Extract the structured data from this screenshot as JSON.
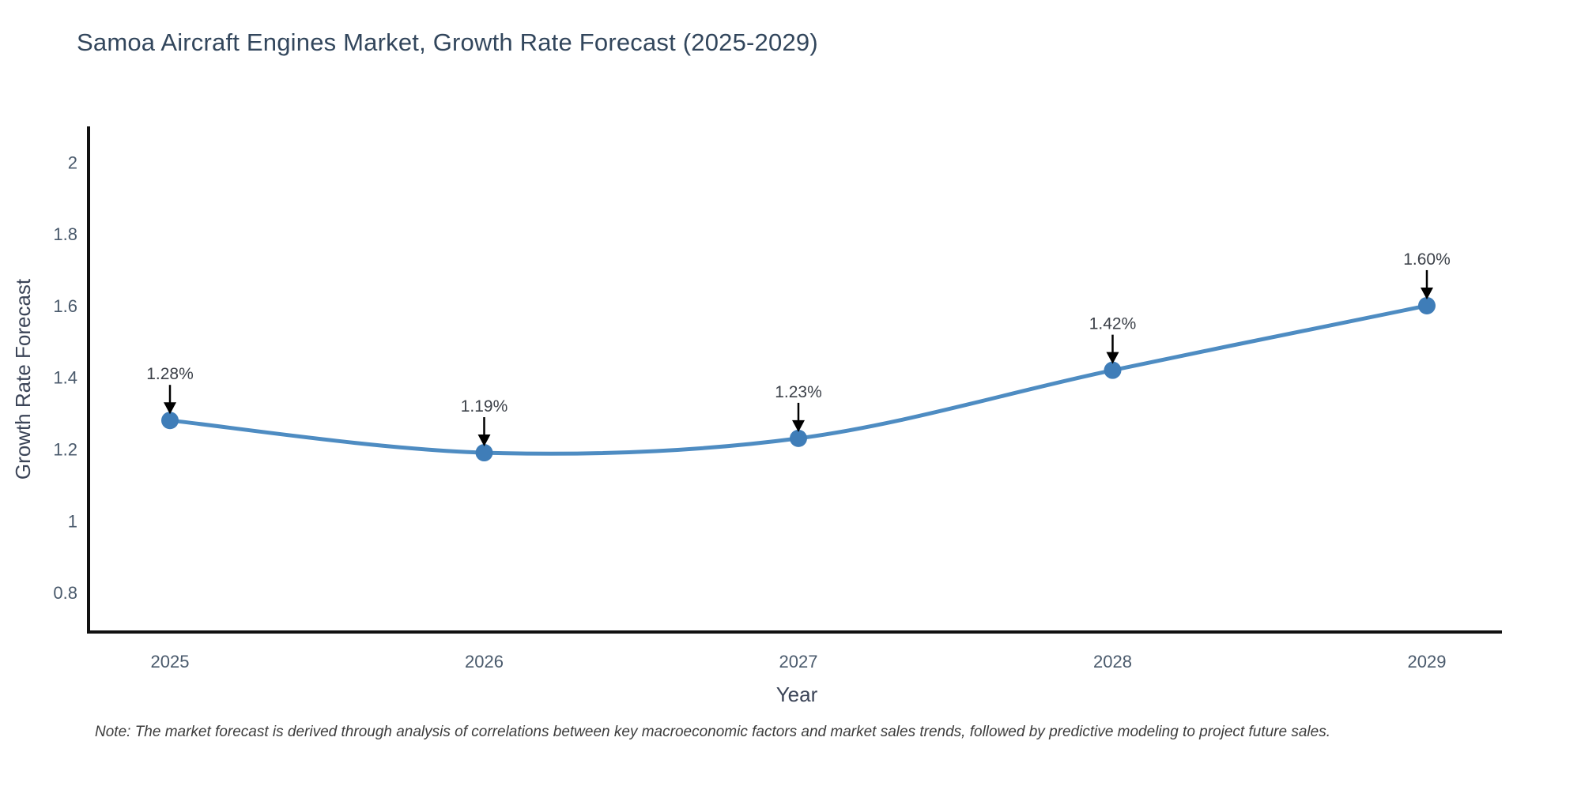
{
  "title": "Samoa Aircraft Engines Market, Growth Rate Forecast (2025-2029)",
  "note": "Note: The market forecast is derived through analysis of correlations between key macroeconomic factors and market sales trends, followed by predictive modeling to project future sales.",
  "chart_data": {
    "type": "line",
    "title": "Samoa Aircraft Engines Market, Growth Rate Forecast (2025-2029)",
    "xlabel": "Year",
    "ylabel": "Growth Rate Forecast",
    "categories": [
      "2025",
      "2026",
      "2027",
      "2028",
      "2029"
    ],
    "series": [
      {
        "name": "Growth Rate Forecast",
        "values": [
          1.28,
          1.19,
          1.23,
          1.42,
          1.6
        ],
        "point_labels": [
          "1.28%",
          "1.19%",
          "1.23%",
          "1.42%",
          "1.60%"
        ]
      }
    ],
    "ylim": [
      0.69,
      2.1
    ],
    "yticks": [
      0.8,
      1.0,
      1.2,
      1.4,
      1.6,
      1.8,
      2.0
    ],
    "ytick_labels": [
      "0.8",
      "1",
      "1.2",
      "1.4",
      "1.6",
      "1.8",
      "2"
    ],
    "grid": false,
    "legend_position": "none",
    "line_shape": "spline",
    "annotations_have_arrows": true,
    "colors": {
      "line": "#4e8cc2",
      "marker": "#3f7db8",
      "axis_line": "#111111",
      "arrow": "#000000",
      "tick_text": "#4a5a6c",
      "title_text": "#32465c",
      "annotation_text": "#3c4149",
      "note_text": "#3c3c3c",
      "background": "#ffffff"
    }
  }
}
